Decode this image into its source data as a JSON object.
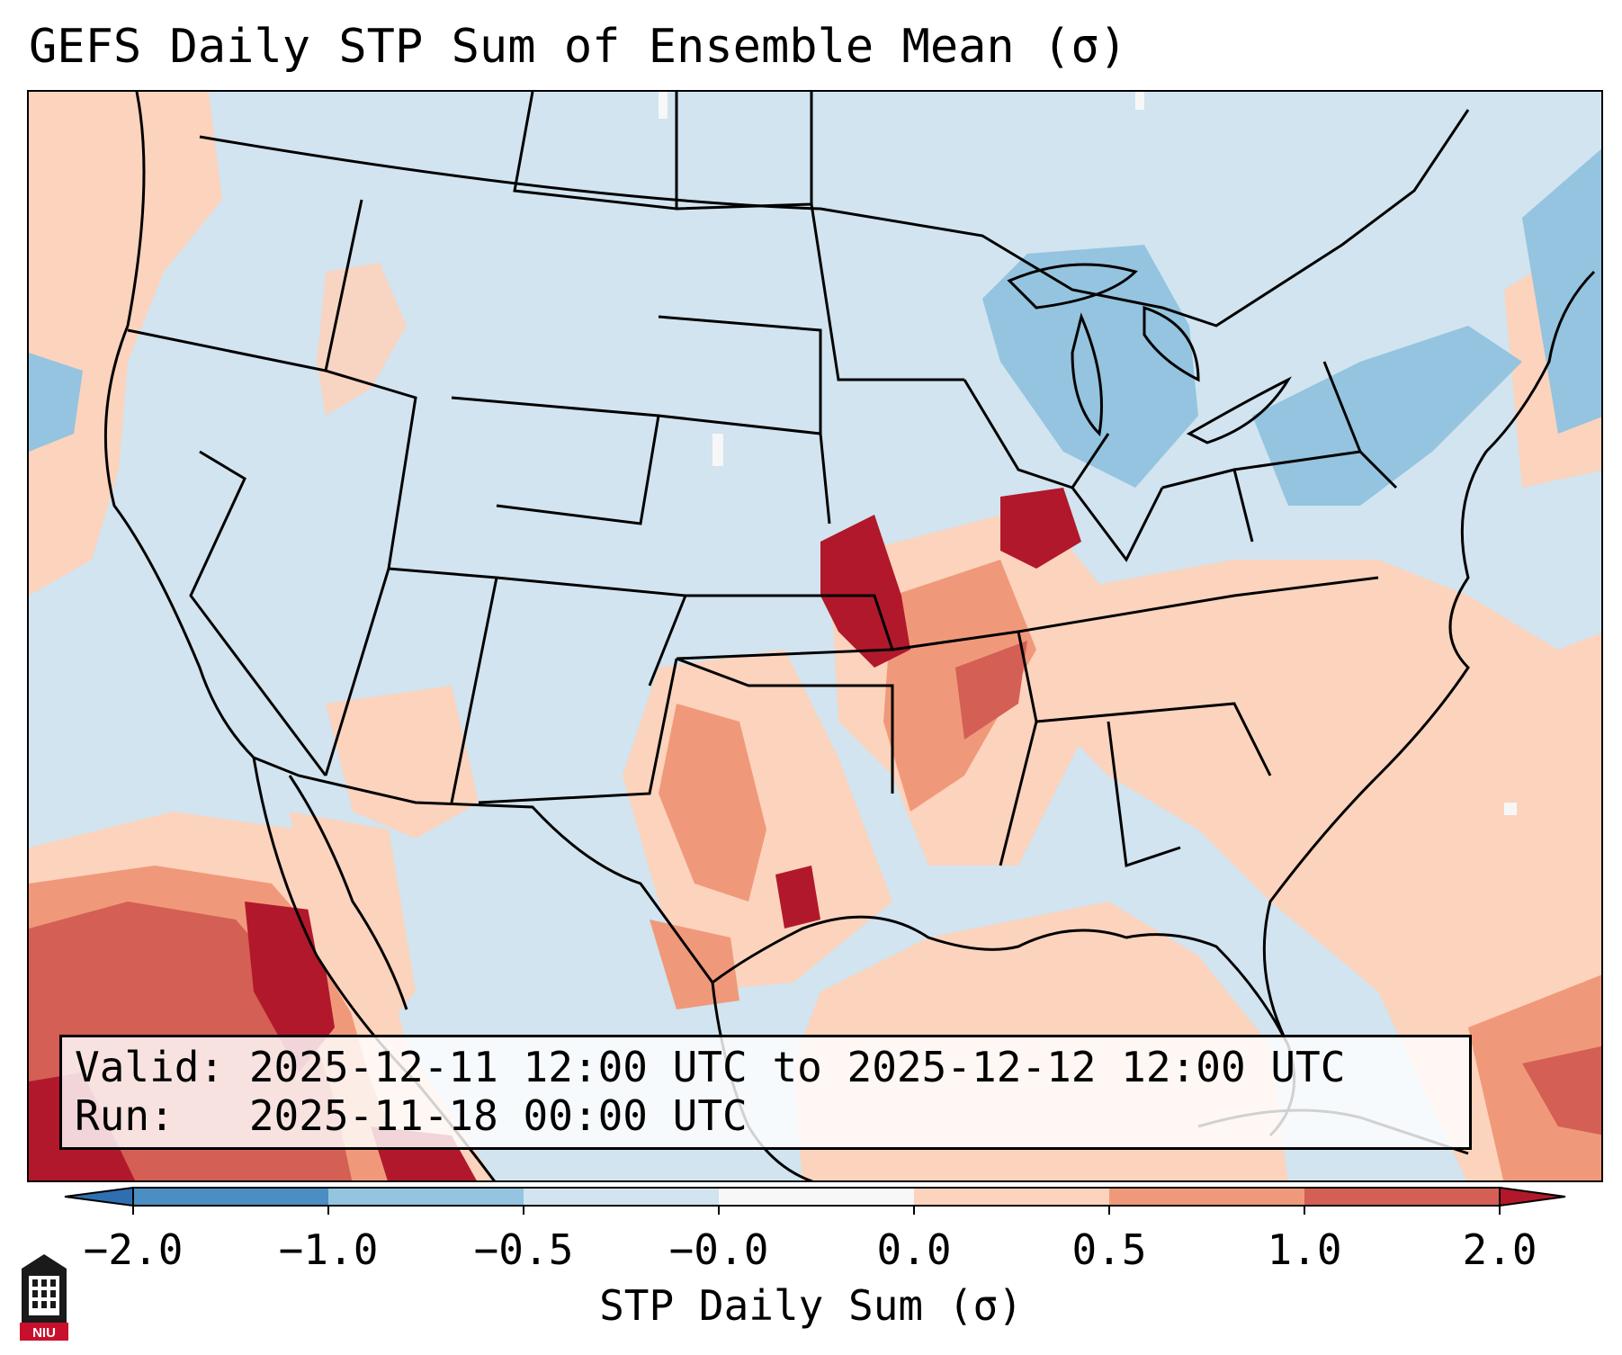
{
  "title": "GEFS Daily STP Sum of Ensemble Mean (σ)",
  "info": {
    "valid_line": "Valid: 2025-12-11 12:00 UTC to 2025-12-12 12:00 UTC",
    "run_line": "Run:   2025-11-18 00:00 UTC"
  },
  "colorbar": {
    "label": "STP Daily Sum (σ)",
    "tick_labels": [
      "−2.0",
      "−1.0",
      "−0.5",
      "−0.0",
      "0.0",
      "0.5",
      "1.0",
      "2.0"
    ],
    "bins": [
      {
        "range": "< -2.0",
        "color": "#2f6fb1"
      },
      {
        "range": "-2.0 to -1.0",
        "color": "#4a8ec4"
      },
      {
        "range": "-1.0 to -0.5",
        "color": "#94c4df"
      },
      {
        "range": "-0.5 to -0.0",
        "color": "#d1e4ef"
      },
      {
        "range": "-0.0 to 0.0",
        "color": "#f7f7f7"
      },
      {
        "range": "0.0 to 0.5",
        "color": "#fcd3bd"
      },
      {
        "range": "0.5 to 1.0",
        "color": "#f0997a"
      },
      {
        "range": "1.0 to 2.0",
        "color": "#d45f55"
      },
      {
        "range": "> 2.0",
        "color": "#b2182b"
      }
    ]
  },
  "logo": {
    "text": "NIU"
  },
  "map_colors": {
    "ocean_bg": "#d1e4ef",
    "light_red": "#fcd3bd",
    "medium_red": "#f0997a",
    "strong_red": "#d45f55",
    "deep_red": "#b2182b",
    "light_blue": "#94c4df",
    "white": "#f7f7f7",
    "border": "#000000"
  }
}
